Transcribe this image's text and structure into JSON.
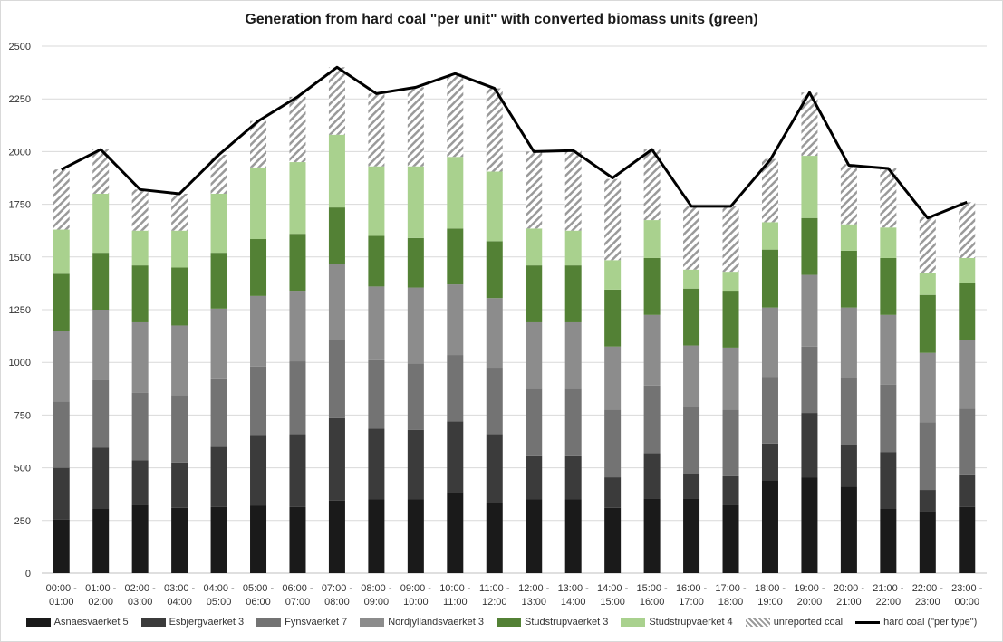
{
  "chart_data": {
    "type": "bar",
    "stacked": true,
    "title": "Generation from hard coal \"per unit\" with converted biomass units (green)",
    "categories": [
      [
        "00:00 -",
        "01:00"
      ],
      [
        "01:00 -",
        "02:00"
      ],
      [
        "02:00 -",
        "03:00"
      ],
      [
        "03:00 -",
        "04:00"
      ],
      [
        "04:00 -",
        "05:00"
      ],
      [
        "05:00 -",
        "06:00"
      ],
      [
        "06:00 -",
        "07:00"
      ],
      [
        "07:00 -",
        "08:00"
      ],
      [
        "08:00 -",
        "09:00"
      ],
      [
        "09:00 -",
        "10:00"
      ],
      [
        "10:00 -",
        "11:00"
      ],
      [
        "11:00 -",
        "12:00"
      ],
      [
        "12:00 -",
        "13:00"
      ],
      [
        "13:00 -",
        "14:00"
      ],
      [
        "14:00 -",
        "15:00"
      ],
      [
        "15:00 -",
        "16:00"
      ],
      [
        "16:00 -",
        "17:00"
      ],
      [
        "17:00 -",
        "18:00"
      ],
      [
        "18:00 -",
        "19:00"
      ],
      [
        "19:00 -",
        "20:00"
      ],
      [
        "20:00 -",
        "21:00"
      ],
      [
        "21:00 -",
        "22:00"
      ],
      [
        "22:00 -",
        "23:00"
      ],
      [
        "23:00 -",
        "00:00"
      ]
    ],
    "ylim": [
      0,
      2500
    ],
    "yticks": [
      0,
      250,
      500,
      750,
      1000,
      1250,
      1500,
      1750,
      2000,
      2250,
      2500
    ],
    "grid": true,
    "legend_position": "bottom",
    "series": [
      {
        "name": "Asnaesvaerket 5",
        "color": "#1a1a1a",
        "pattern": "solid",
        "values": [
          255,
          305,
          325,
          310,
          315,
          320,
          315,
          345,
          350,
          350,
          385,
          335,
          350,
          350,
          310,
          355,
          355,
          325,
          440,
          455,
          410,
          305,
          295,
          315
        ]
      },
      {
        "name": "Esbjergvaerket 3",
        "color": "#3b3b3b",
        "pattern": "solid",
        "values": [
          245,
          290,
          210,
          215,
          285,
          335,
          345,
          390,
          335,
          330,
          335,
          325,
          205,
          205,
          145,
          215,
          115,
          135,
          175,
          305,
          200,
          270,
          100,
          150
        ]
      },
      {
        "name": "Fynsvaerket 7",
        "color": "#737373",
        "pattern": "solid",
        "values": [
          315,
          320,
          320,
          320,
          320,
          325,
          345,
          370,
          325,
          315,
          315,
          315,
          320,
          320,
          320,
          320,
          320,
          315,
          315,
          315,
          315,
          320,
          320,
          315
        ]
      },
      {
        "name": "Nordjyllandsvaerket 3",
        "color": "#8c8c8c",
        "pattern": "solid",
        "values": [
          335,
          335,
          335,
          330,
          335,
          335,
          335,
          360,
          350,
          360,
          335,
          330,
          315,
          315,
          300,
          335,
          290,
          295,
          330,
          340,
          335,
          330,
          330,
          325
        ]
      },
      {
        "name": "Studstrupvaerket 3",
        "color": "#538135",
        "pattern": "solid",
        "values": [
          270,
          270,
          270,
          275,
          265,
          270,
          270,
          270,
          240,
          235,
          265,
          270,
          270,
          270,
          270,
          270,
          270,
          270,
          275,
          270,
          270,
          270,
          275,
          270
        ]
      },
      {
        "name": "Studstrupvaerket 4",
        "color": "#a9d18e",
        "pattern": "solid",
        "values": [
          210,
          280,
          165,
          175,
          280,
          340,
          340,
          345,
          330,
          340,
          340,
          330,
          175,
          165,
          140,
          180,
          90,
          90,
          130,
          295,
          125,
          145,
          105,
          120
        ]
      },
      {
        "name": "unreported coal",
        "color": "#9a9a9a",
        "pattern": "hatch",
        "values": [
          285,
          210,
          195,
          175,
          185,
          220,
          310,
          320,
          345,
          375,
          395,
          395,
          365,
          380,
          385,
          335,
          300,
          310,
          300,
          300,
          285,
          280,
          265,
          265
        ]
      }
    ],
    "line_series": {
      "name": "hard coal (\"per type\")",
      "color": "#000000",
      "values": [
        1915,
        2010,
        1820,
        1800,
        1985,
        2145,
        2260,
        2400,
        2275,
        2305,
        2370,
        2300,
        2000,
        2005,
        1875,
        2010,
        1740,
        1740,
        1960,
        2280,
        1935,
        1920,
        1685,
        1760
      ]
    }
  }
}
